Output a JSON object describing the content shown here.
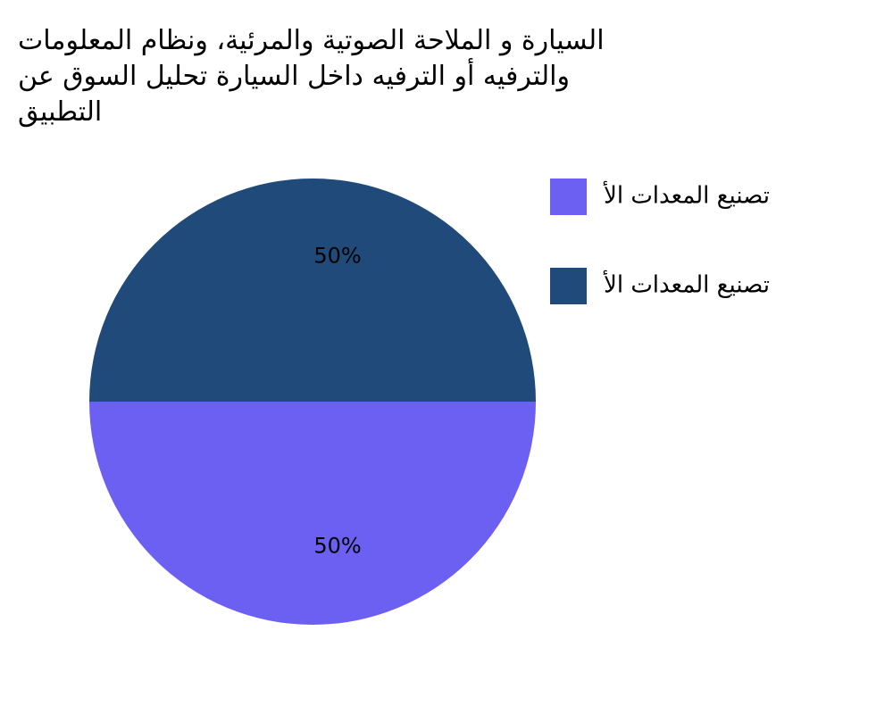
{
  "chart_data": {
    "type": "pie",
    "title": [
      "السيارة و الملاحة الصوتية والمرئية، ونظام المعلومات",
      "والترفيه أو الترفيه داخل السيارة تحليل السوق عن",
      "التطبيق"
    ],
    "series": [
      {
        "name": "تصنيع المعدات الأ",
        "color": "#6c60f2",
        "values": [
          50
        ],
        "value_labels": [
          "50%"
        ]
      },
      {
        "name": "تصنيع المعدات الأ",
        "color": "#1f4a7a",
        "values": [
          50
        ],
        "value_labels": [
          "50%"
        ]
      }
    ]
  }
}
